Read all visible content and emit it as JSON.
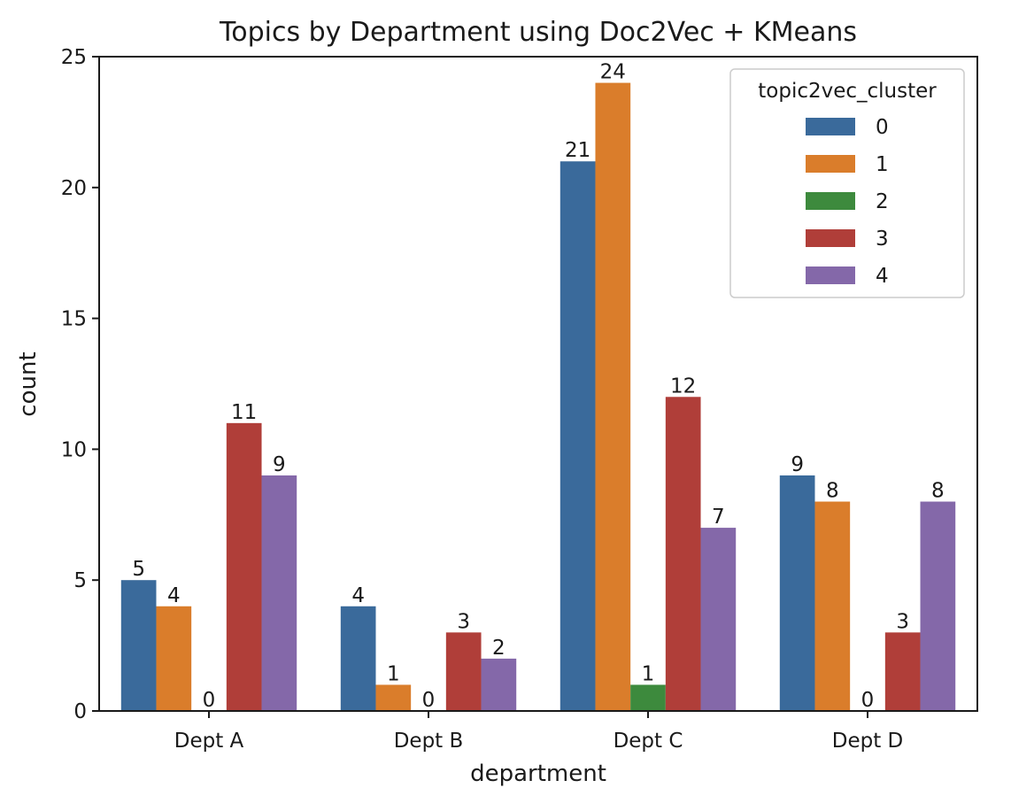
{
  "chart_data": {
    "type": "bar",
    "title": "Topics by Department using Doc2Vec + KMeans",
    "xlabel": "department",
    "ylabel": "count",
    "categories": [
      "Dept A",
      "Dept B",
      "Dept C",
      "Dept D"
    ],
    "ylim": [
      0,
      25
    ],
    "yticks": [
      0,
      5,
      10,
      15,
      20,
      25
    ],
    "grid": false,
    "legend": {
      "title": "topic2vec_cluster",
      "placement": "top-right"
    },
    "series": [
      {
        "name": "0",
        "color": "#3a6a9b",
        "values": [
          5,
          4,
          21,
          9
        ]
      },
      {
        "name": "1",
        "color": "#da7d2b",
        "values": [
          4,
          1,
          24,
          8
        ]
      },
      {
        "name": "2",
        "color": "#3d8a3d",
        "values": [
          0,
          0,
          1,
          0
        ]
      },
      {
        "name": "3",
        "color": "#b03e39",
        "values": [
          11,
          3,
          12,
          3
        ]
      },
      {
        "name": "4",
        "color": "#8468a9",
        "values": [
          9,
          2,
          7,
          8
        ]
      }
    ]
  }
}
